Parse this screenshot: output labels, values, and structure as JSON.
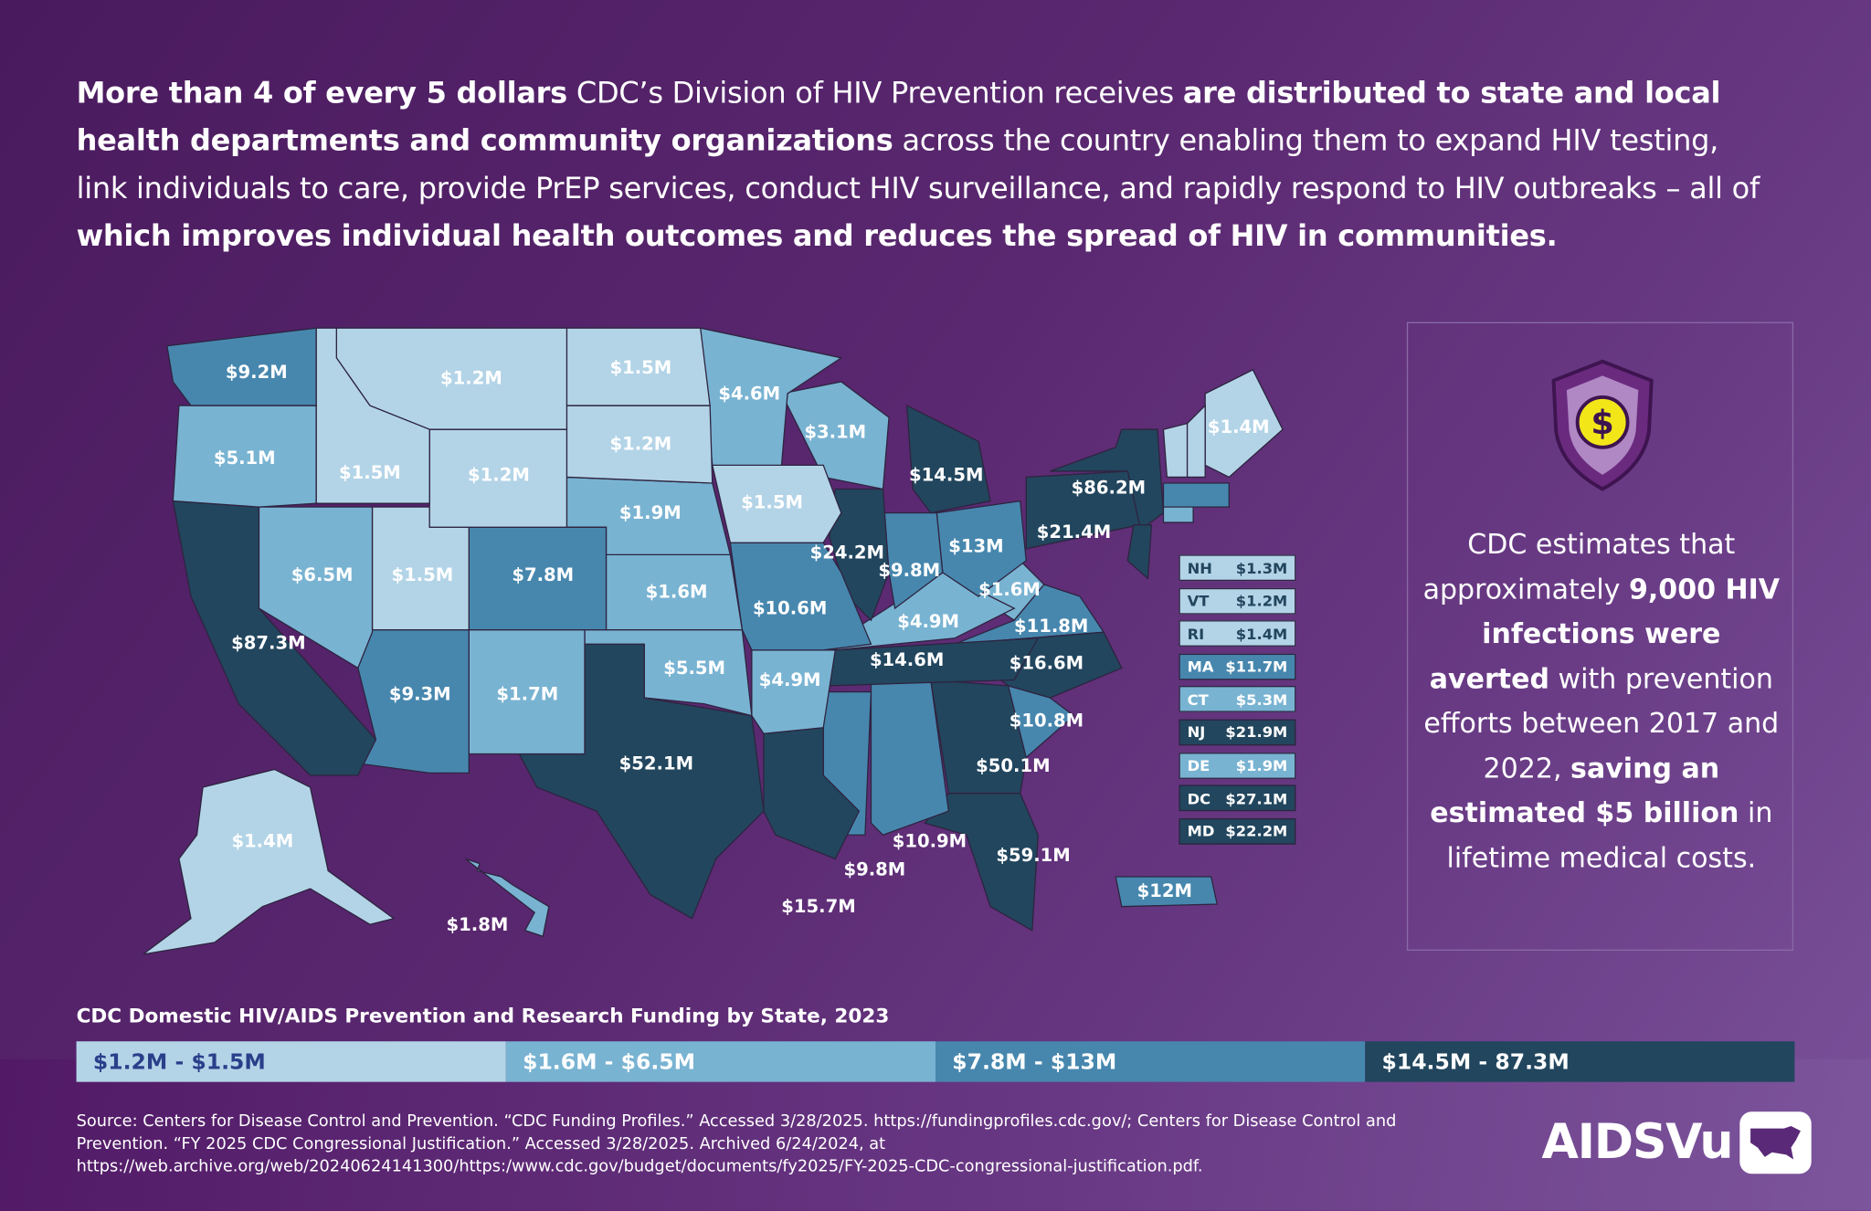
{
  "headline": {
    "p1_bold": "More than 4 of every 5 dollars",
    "p2": " CDC’s Division of HIV Prevention receives ",
    "p3_bold": "are distributed to state and local health departments and community organizations",
    "p4": " across the country enabling them to expand HIV testing, link individuals to care, provide PrEP services, conduct HIV surveillance, and rapidly respond to HIV outbreaks – all of ",
    "p5_bold": "which improves individual health outcomes and reduces the spread of HIV in communities."
  },
  "colors": {
    "tier1": "#b3d4e7",
    "tier2": "#79b3d2",
    "tier3": "#4787ae",
    "tier4": "#22465e",
    "tier1_text": "#2a3f8a"
  },
  "map": {
    "states": [
      {
        "abbr": "WA",
        "value": "$9.2M",
        "tier": 3
      },
      {
        "abbr": "OR",
        "value": "$5.1M",
        "tier": 2
      },
      {
        "abbr": "CA",
        "value": "$87.3M",
        "tier": 4
      },
      {
        "abbr": "ID",
        "value": "$1.5M",
        "tier": 1
      },
      {
        "abbr": "MT",
        "value": "$1.2M",
        "tier": 1
      },
      {
        "abbr": "WY",
        "value": "$1.2M",
        "tier": 1
      },
      {
        "abbr": "NV",
        "value": "$6.5M",
        "tier": 2
      },
      {
        "abbr": "UT",
        "value": "$1.5M",
        "tier": 1
      },
      {
        "abbr": "CO",
        "value": "$7.8M",
        "tier": 3
      },
      {
        "abbr": "AZ",
        "value": "$9.3M",
        "tier": 3
      },
      {
        "abbr": "NM",
        "value": "$1.7M",
        "tier": 2
      },
      {
        "abbr": "ND",
        "value": "$1.5M",
        "tier": 1
      },
      {
        "abbr": "SD",
        "value": "$1.2M",
        "tier": 1
      },
      {
        "abbr": "NE",
        "value": "$1.9M",
        "tier": 2
      },
      {
        "abbr": "KS",
        "value": "$1.6M",
        "tier": 2
      },
      {
        "abbr": "OK",
        "value": "$5.5M",
        "tier": 2
      },
      {
        "abbr": "TX",
        "value": "$52.1M",
        "tier": 4
      },
      {
        "abbr": "MN",
        "value": "$4.6M",
        "tier": 2
      },
      {
        "abbr": "IA",
        "value": "$1.5M",
        "tier": 1
      },
      {
        "abbr": "MO",
        "value": "$10.6M",
        "tier": 3
      },
      {
        "abbr": "AR",
        "value": "$4.9M",
        "tier": 2
      },
      {
        "abbr": "LA",
        "value": "$15.7M",
        "tier": 4
      },
      {
        "abbr": "WI",
        "value": "$3.1M",
        "tier": 2
      },
      {
        "abbr": "IL",
        "value": "$24.2M",
        "tier": 4
      },
      {
        "abbr": "MI",
        "value": "$14.5M",
        "tier": 4
      },
      {
        "abbr": "IN",
        "value": "$9.8M",
        "tier": 3
      },
      {
        "abbr": "OH",
        "value": "$13M",
        "tier": 3
      },
      {
        "abbr": "KY",
        "value": "$4.9M",
        "tier": 2
      },
      {
        "abbr": "TN",
        "value": "$14.6M",
        "tier": 4
      },
      {
        "abbr": "MS",
        "value": "$9.8M",
        "tier": 3
      },
      {
        "abbr": "AL",
        "value": "$10.9M",
        "tier": 3
      },
      {
        "abbr": "GA",
        "value": "$50.1M",
        "tier": 4
      },
      {
        "abbr": "FL",
        "value": "$59.1M",
        "tier": 4
      },
      {
        "abbr": "SC",
        "value": "$10.8M",
        "tier": 3
      },
      {
        "abbr": "NC",
        "value": "$16.6M",
        "tier": 4
      },
      {
        "abbr": "VA",
        "value": "$11.8M",
        "tier": 3
      },
      {
        "abbr": "WV",
        "value": "$1.6M",
        "tier": 2
      },
      {
        "abbr": "PA",
        "value": "$21.4M",
        "tier": 4
      },
      {
        "abbr": "NY",
        "value": "$86.2M",
        "tier": 4
      },
      {
        "abbr": "ME",
        "value": "$1.4M",
        "tier": 1
      },
      {
        "abbr": "AK",
        "value": "$1.4M",
        "tier": 1
      },
      {
        "abbr": "HI",
        "value": "$1.8M",
        "tier": 2
      },
      {
        "abbr": "PR",
        "value": "$12M",
        "tier": 3
      }
    ],
    "small_states": [
      {
        "abbr": "NH",
        "value": "$1.3M",
        "tier": 1
      },
      {
        "abbr": "VT",
        "value": "$1.2M",
        "tier": 1
      },
      {
        "abbr": "RI",
        "value": "$1.4M",
        "tier": 1
      },
      {
        "abbr": "MA",
        "value": "$11.7M",
        "tier": 3
      },
      {
        "abbr": "CT",
        "value": "$5.3M",
        "tier": 2
      },
      {
        "abbr": "NJ",
        "value": "$21.9M",
        "tier": 4
      },
      {
        "abbr": "DE",
        "value": "$1.9M",
        "tier": 2
      },
      {
        "abbr": "DC",
        "value": "$27.1M",
        "tier": 4
      },
      {
        "abbr": "MD",
        "value": "$22.2M",
        "tier": 4
      }
    ]
  },
  "panel": {
    "icon": "dollar-shield-icon",
    "t1": "CDC estimates that approximately ",
    "t2_bold": "9,000 HIV infections were averted",
    "t3": " with prevention efforts between 2017 and 2022, ",
    "t4_bold": "saving an estimated $5 billion",
    "t5": " in lifetime medical costs."
  },
  "legend": {
    "title": "CDC Domestic HIV/AIDS Prevention and Research Funding by State, 2023",
    "tiers": [
      "$1.2M - $1.5M",
      "$1.6M - $6.5M",
      "$7.8M - $13M",
      "$14.5M - 87.3M"
    ]
  },
  "source": "Source: Centers for Disease Control and Prevention. “CDC Funding Profiles.” Accessed 3/28/2025. https://fundingprofiles.cdc.gov/; Centers for Disease Control and Prevention. “FY 2025 CDC Congressional Justification.” Accessed 3/28/2025. Archived 6/24/2024, at https://web.archive.org/web/20240624141300/https:/www.cdc.gov/budget/documents/fy2025/FY-2025-CDC-congressional-justification.pdf.",
  "logo": {
    "text": "AIDSVu"
  }
}
